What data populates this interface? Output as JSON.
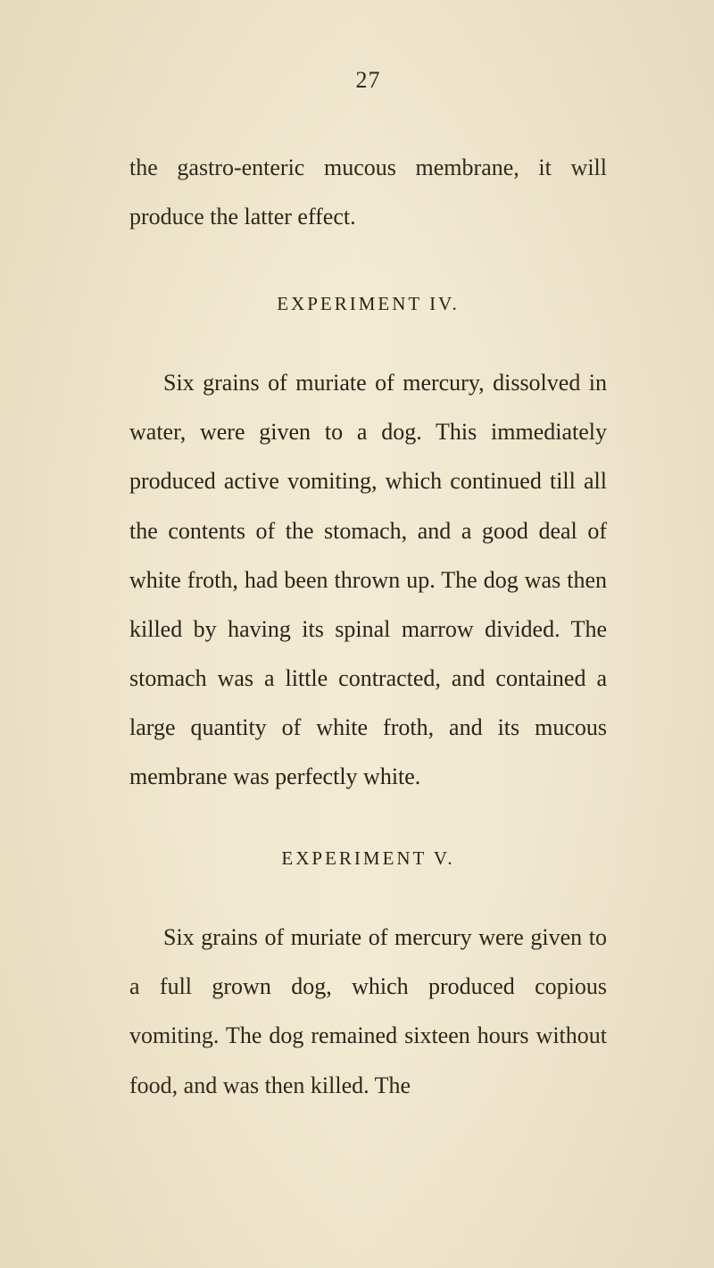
{
  "page": {
    "number": "27",
    "background_color": "#f0e8d0",
    "text_color": "#2a2418",
    "font_family": "Georgia, Times New Roman, serif",
    "body_fontsize": 26,
    "heading_fontsize": 21,
    "line_height": 2.12
  },
  "paragraphs": {
    "intro": "the gastro-enteric mucous membrane, it will produce the latter effect.",
    "exp4_heading": "EXPERIMENT IV.",
    "exp4_body": "Six grains of muriate of mercury, dissolved in water, were given to a dog. This immediately produced active vomiting, which continued till all the contents of the stomach, and a good deal of white froth, had been thrown up. The dog was then killed by having its spinal marrow divided. The stomach was a little contracted, and contained a large quantity of white froth, and its mucous membrane was perfectly white.",
    "exp5_heading": "EXPERIMENT V.",
    "exp5_body": "Six grains of muriate of mercury were given to a full grown dog, which produced copious vomiting. The dog remained sixteen hours without food, and was then killed. The"
  }
}
